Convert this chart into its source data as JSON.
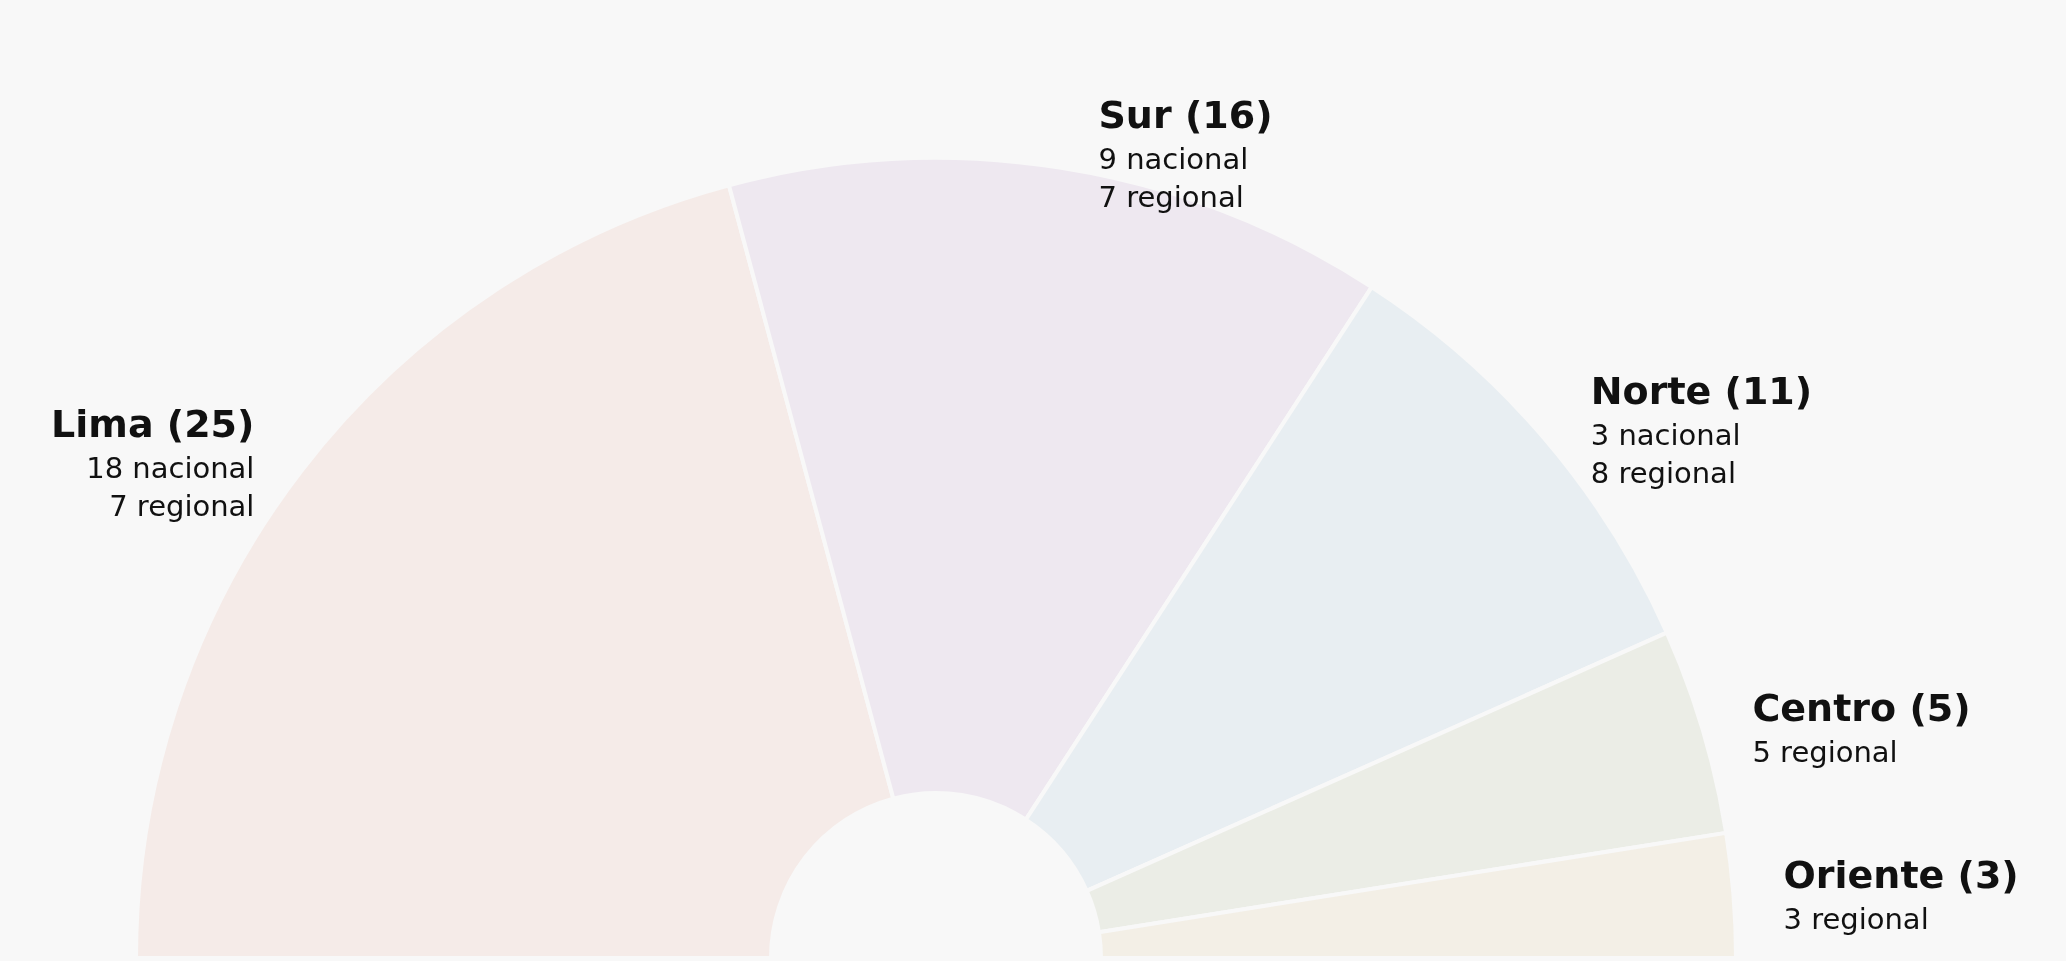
{
  "chart_data": {
    "type": "donut",
    "categories": [
      "Lima (25)",
      "Sur (16)",
      "Norte (11)",
      "Centro (5)",
      "Oriente (3)"
    ],
    "values": [
      25,
      16,
      11,
      5,
      3
    ],
    "colors": [
      "#f5ebe8",
      "#eee8f0",
      "#e8eef2",
      "#ebede6",
      "#f3efe6"
    ],
    "annotations": [
      "18 nacional\n7 regional",
      "9 nacional\n7 regional",
      "3 nacional\n8 regional",
      "5 regional",
      "3 regional"
    ],
    "legend": false
  }
}
